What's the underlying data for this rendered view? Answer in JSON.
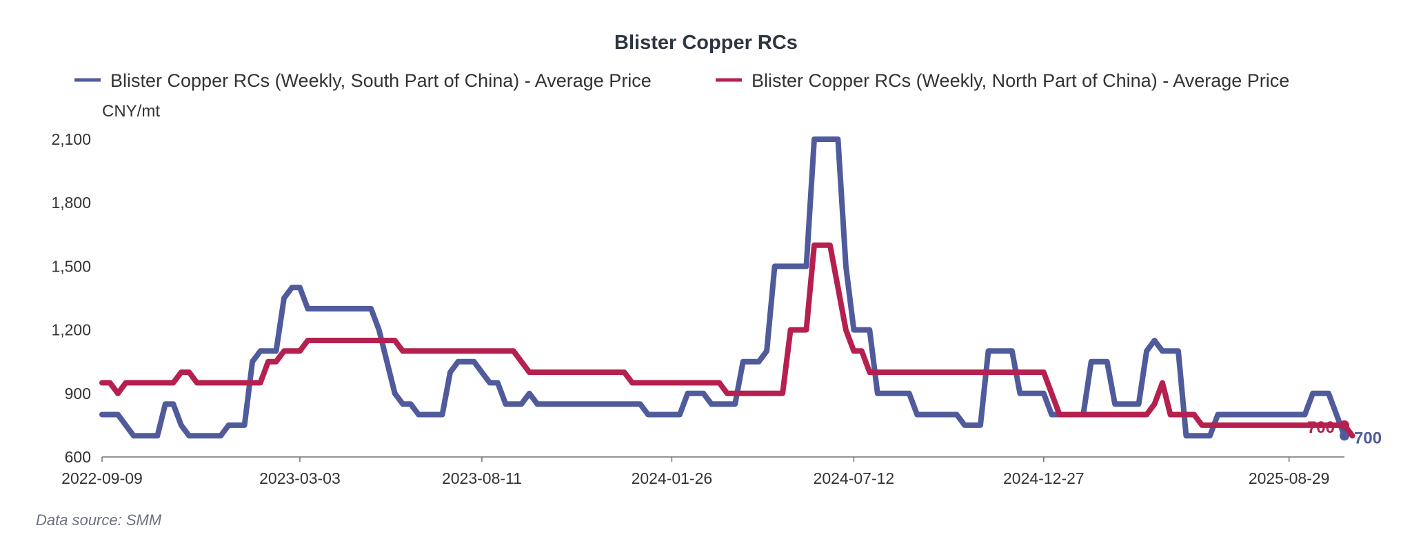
{
  "chart_data": {
    "type": "line",
    "title": "Blister Copper RCs",
    "ylabel": "CNY/mt",
    "xlabel": "",
    "ylim": [
      600,
      2100
    ],
    "yticks": [
      600,
      900,
      1200,
      1500,
      1800,
      2100
    ],
    "ytick_labels": [
      "600",
      "900",
      "1,200",
      "1,500",
      "1,800",
      "2,100"
    ],
    "xtick_labels": [
      "2022-09-09",
      "2023-03-03",
      "2023-08-11",
      "2024-01-26",
      "2024-07-12",
      "2024-12-27",
      "2025-08-29"
    ],
    "xtick_index": [
      0,
      25,
      48,
      72,
      95,
      119,
      150
    ],
    "grid": false,
    "legend_position": "top",
    "series": [
      {
        "name": "Blister Copper RCs (Weekly, South Part of China) - Average Price",
        "color": "#4f5b9b",
        "end_label": "700",
        "values": [
          800,
          800,
          800,
          750,
          700,
          700,
          700,
          700,
          850,
          850,
          750,
          700,
          700,
          700,
          700,
          700,
          750,
          750,
          750,
          1050,
          1100,
          1100,
          1100,
          1350,
          1400,
          1400,
          1300,
          1300,
          1300,
          1300,
          1300,
          1300,
          1300,
          1300,
          1300,
          1200,
          1050,
          900,
          850,
          850,
          800,
          800,
          800,
          800,
          1000,
          1050,
          1050,
          1050,
          1000,
          950,
          950,
          850,
          850,
          850,
          900,
          850,
          850,
          850,
          850,
          850,
          850,
          850,
          850,
          850,
          850,
          850,
          850,
          850,
          850,
          800,
          800,
          800,
          800,
          800,
          900,
          900,
          900,
          850,
          850,
          850,
          850,
          1050,
          1050,
          1050,
          1100,
          1500,
          1500,
          1500,
          1500,
          1500,
          2100,
          2100,
          2100,
          2100,
          1500,
          1200,
          1200,
          1200,
          900,
          900,
          900,
          900,
          900,
          800,
          800,
          800,
          800,
          800,
          800,
          750,
          750,
          750,
          1100,
          1100,
          1100,
          1100,
          900,
          900,
          900,
          900,
          800,
          800,
          800,
          800,
          800,
          1050,
          1050,
          1050,
          850,
          850,
          850,
          850,
          1100,
          1150,
          1100,
          1100,
          1100,
          700,
          700,
          700,
          700,
          800,
          800,
          800,
          800,
          800,
          800,
          800,
          800,
          800,
          800,
          800,
          800,
          900,
          900,
          900,
          800,
          700
        ]
      },
      {
        "name": "Blister Copper RCs (Weekly, North Part of China) - Average Price",
        "color": "#b5204e",
        "end_label": "700",
        "values": [
          950,
          950,
          900,
          950,
          950,
          950,
          950,
          950,
          950,
          950,
          1000,
          1000,
          950,
          950,
          950,
          950,
          950,
          950,
          950,
          950,
          950,
          1050,
          1050,
          1100,
          1100,
          1100,
          1150,
          1150,
          1150,
          1150,
          1150,
          1150,
          1150,
          1150,
          1150,
          1150,
          1150,
          1150,
          1100,
          1100,
          1100,
          1100,
          1100,
          1100,
          1100,
          1100,
          1100,
          1100,
          1100,
          1100,
          1100,
          1100,
          1100,
          1050,
          1000,
          1000,
          1000,
          1000,
          1000,
          1000,
          1000,
          1000,
          1000,
          1000,
          1000,
          1000,
          1000,
          950,
          950,
          950,
          950,
          950,
          950,
          950,
          950,
          950,
          950,
          950,
          950,
          900,
          900,
          900,
          900,
          900,
          900,
          900,
          900,
          1200,
          1200,
          1200,
          1600,
          1600,
          1600,
          1400,
          1200,
          1100,
          1100,
          1000,
          1000,
          1000,
          1000,
          1000,
          1000,
          1000,
          1000,
          1000,
          1000,
          1000,
          1000,
          1000,
          1000,
          1000,
          1000,
          1000,
          1000,
          1000,
          1000,
          1000,
          1000,
          1000,
          900,
          800,
          800,
          800,
          800,
          800,
          800,
          800,
          800,
          800,
          800,
          800,
          800,
          850,
          950,
          800,
          800,
          800,
          800,
          750,
          750,
          750,
          750,
          750,
          750,
          750,
          750,
          750,
          750,
          750,
          750,
          750,
          750,
          750,
          750,
          750,
          750,
          750,
          700
        ]
      }
    ]
  },
  "footer": {
    "source": "Data source:  SMM"
  }
}
